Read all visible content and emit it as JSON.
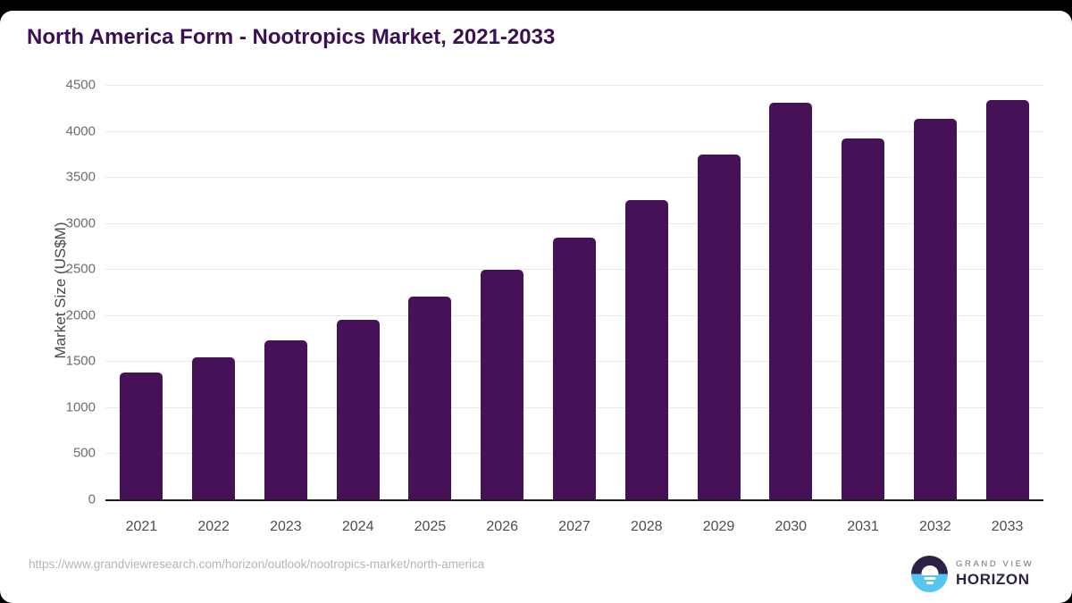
{
  "page": {
    "source_url": "https://www.grandviewresearch.com/horizon/outlook/nootropics-market/north-america"
  },
  "logo": {
    "icon": "sunrise-horizon-icon",
    "line1": "GRAND VIEW",
    "line2": "HORIZON",
    "dark_color": "#2d2145",
    "blue_color": "#56c5f1"
  },
  "colors": {
    "bar": "#471157",
    "title": "#3a1053",
    "gridline": "#e9e9e9",
    "axis_line": "#1c1c1c",
    "y_tick": "#6e6e6e",
    "x_tick": "#4d4d4d",
    "url_text": "#b5b5b5"
  },
  "chart_data": {
    "type": "bar",
    "title": "North America Form - Nootropics Market, 2021-2033",
    "categories": [
      "2021",
      "2022",
      "2023",
      "2024",
      "2025",
      "2026",
      "2027",
      "2028",
      "2029",
      "2030",
      "2031",
      "2032",
      "2033"
    ],
    "values": [
      1375,
      1540,
      1725,
      1950,
      2200,
      2490,
      2840,
      3245,
      3740,
      4310,
      3915,
      4135,
      4340
    ],
    "xlabel": "",
    "ylabel": "Market Size (US$M)",
    "ylim": [
      0,
      4500
    ],
    "ytick_step": 500,
    "grid": "horizontal",
    "legend": "none",
    "bar_color": "#471157"
  }
}
